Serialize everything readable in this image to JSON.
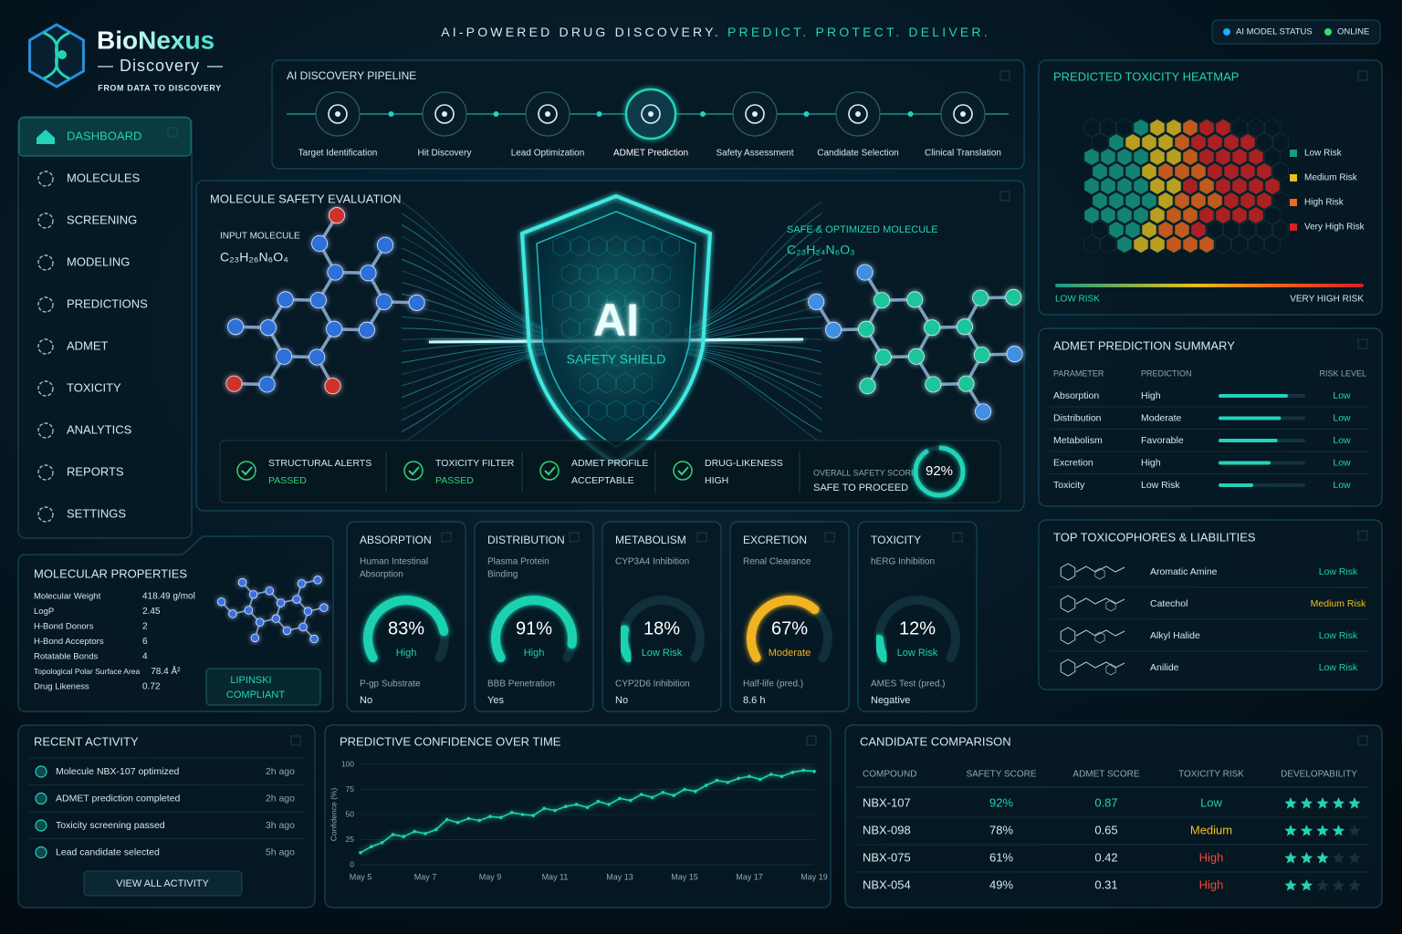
{
  "header": {
    "brand": "BioNexus",
    "brand_sub": "Discovery",
    "brand_tagline": "FROM DATA TO DISCOVERY",
    "tagline": "AI-POWERED DRUG DISCOVERY. ",
    "tagline_accent": "PREDICT. PROTECT. DELIVER.",
    "status_label": "AI MODEL STATUS",
    "status_value": "ONLINE"
  },
  "nav": {
    "items": [
      "DASHBOARD",
      "MOLECULES",
      "SCREENING",
      "MODELING",
      "PREDICTIONS",
      "ADMET",
      "TOXICITY",
      "ANALYTICS",
      "REPORTS",
      "SETTINGS"
    ],
    "active": 0
  },
  "pipeline": {
    "title": "AI DISCOVERY PIPELINE",
    "steps": [
      "Target Identification",
      "Hit Discovery",
      "Lead Optimization",
      "ADMET Prediction",
      "Safety Assessment",
      "Candidate Selection",
      "Clinical Translation"
    ],
    "active": 3
  },
  "safety": {
    "title": "MOLECULE SAFETY EVALUATION",
    "input_label": "INPUT MOLECULE",
    "input_formula": "C₂₃H₂₆N₆O₄",
    "output_label": "SAFE & OPTIMIZED MOLECULE",
    "output_formula": "C₂₃H₂₄N₆O₃",
    "shield_title": "AI",
    "shield_sub": "SAFETY SHIELD",
    "checks": [
      {
        "label": "STRUCTURAL ALERTS",
        "status": "PASSED"
      },
      {
        "label": "TOXICITY FILTER",
        "status": "PASSED"
      },
      {
        "label": "ADMET PROFILE",
        "status": "ACCEPTABLE"
      },
      {
        "label": "DRUG-LIKENESS",
        "status": "HIGH"
      }
    ],
    "overall_label": "OVERALL SAFETY SCORE",
    "overall_status": "SAFE TO PROCEED",
    "overall_score": {
      "value": 92,
      "label": "92%"
    },
    "score_lim": [
      0,
      100
    ]
  },
  "heatmap": {
    "title": "PREDICTED TOXICITY HEATMAP",
    "legend": [
      {
        "name": "Low Risk",
        "color": "#169c86"
      },
      {
        "name": "Medium Risk",
        "color": "#e6c01e"
      },
      {
        "name": "High Risk",
        "color": "#ef6a1c"
      },
      {
        "name": "Very High Risk",
        "color": "#d42222"
      }
    ],
    "scale_low": "LOW RISK",
    "scale_high": "VERY HIGH RISK"
  },
  "admet_summary": {
    "title": "ADMET PREDICTION SUMMARY",
    "columns": [
      "PARAMETER",
      "PREDICTION",
      "RISK LEVEL"
    ],
    "bar_lim": [
      0,
      100
    ],
    "rows": [
      {
        "parameter": "Absorption",
        "prediction": "High",
        "bar": 80,
        "risk": "Low"
      },
      {
        "parameter": "Distribution",
        "prediction": "Moderate",
        "bar": 72,
        "risk": "Low"
      },
      {
        "parameter": "Metabolism",
        "prediction": "Favorable",
        "bar": 68,
        "risk": "Low"
      },
      {
        "parameter": "Excretion",
        "prediction": "High",
        "bar": 60,
        "risk": "Low"
      },
      {
        "parameter": "Toxicity",
        "prediction": "Low Risk",
        "bar": 40,
        "risk": "Low"
      }
    ]
  },
  "properties": {
    "title": "MOLECULAR PROPERTIES",
    "rows": [
      [
        "Molecular Weight",
        "418.49 g/mol"
      ],
      [
        "LogP",
        "2.45"
      ],
      [
        "H-Bond Donors",
        "2"
      ],
      [
        "H-Bond Acceptors",
        "6"
      ],
      [
        "Rotatable Bonds",
        "4"
      ],
      [
        "Topological Polar Surface Area",
        "78.4 Å²"
      ],
      [
        "Drug Likeness",
        "0.72"
      ]
    ],
    "badge": [
      "LIPINSKI",
      "COMPLIANT"
    ]
  },
  "cards": {
    "gauge_lim": [
      0,
      100
    ],
    "items": [
      {
        "title": "ABSORPTION",
        "subtitle": [
          "Human Intestinal",
          "Absorption"
        ],
        "gauge": {
          "value": 83,
          "label": "83%"
        },
        "status": "High",
        "color": "#1fd1b0",
        "footer_label": "P-gp Substrate",
        "footer_value": "No"
      },
      {
        "title": "DISTRIBUTION",
        "subtitle": [
          "Plasma Protein",
          "Binding"
        ],
        "gauge": {
          "value": 91,
          "label": "91%"
        },
        "status": "High",
        "color": "#1fd1b0",
        "footer_label": "BBB Penetration",
        "footer_value": "Yes"
      },
      {
        "title": "METABOLISM",
        "subtitle": [
          "CYP3A4 Inhibition"
        ],
        "gauge": {
          "value": 18,
          "label": "18%"
        },
        "status": "Low Risk",
        "color": "#1fd1b0",
        "footer_label": "CYP2D6 Inhibition",
        "footer_value": "No"
      },
      {
        "title": "EXCRETION",
        "subtitle": [
          "Renal Clearance"
        ],
        "gauge": {
          "value": 67,
          "label": "67%"
        },
        "status": "Moderate",
        "color": "#f0b323",
        "footer_label": "Half-life (pred.)",
        "footer_value": "8.6 h"
      },
      {
        "title": "TOXICITY",
        "subtitle": [
          "hERG Inhibition"
        ],
        "gauge": {
          "value": 12,
          "label": "12%"
        },
        "status": "Low Risk",
        "color": "#1fd1b0",
        "footer_label": "AMES Test (pred.)",
        "footer_value": "Negative"
      }
    ]
  },
  "toxicophores": {
    "title": "TOP TOXICOPHORES & LIABILITIES",
    "items": [
      {
        "name": "Aromatic Amine",
        "risk": "Low Risk",
        "color": "#1fd1b0"
      },
      {
        "name": "Catechol",
        "risk": "Medium Risk",
        "color": "#f0c020"
      },
      {
        "name": "Alkyl Halide",
        "risk": "Low Risk",
        "color": "#1fd1b0"
      },
      {
        "name": "Anilide",
        "risk": "Low Risk",
        "color": "#1fd1b0"
      }
    ]
  },
  "activity": {
    "title": "RECENT ACTIVITY",
    "items": [
      {
        "text": "Molecule NBX-107 optimized",
        "time": "2h ago"
      },
      {
        "text": "ADMET prediction completed",
        "time": "2h ago"
      },
      {
        "text": "Toxicity screening passed",
        "time": "3h ago"
      },
      {
        "text": "Lead candidate selected",
        "time": "5h ago"
      }
    ],
    "button": "VIEW ALL ACTIVITY"
  },
  "chart_data": {
    "type": "line",
    "title": "PREDICTIVE CONFIDENCE OVER TIME",
    "y_label": "Confidence (%)",
    "categories": [
      "May 5",
      null,
      null,
      null,
      null,
      null,
      "May 7",
      null,
      null,
      null,
      null,
      null,
      "May 9",
      null,
      null,
      null,
      null,
      null,
      "May 11",
      null,
      null,
      null,
      null,
      null,
      "May 13",
      null,
      null,
      null,
      null,
      null,
      "May 15",
      null,
      null,
      null,
      null,
      null,
      "May 17",
      null,
      null,
      null,
      null,
      null,
      "May 19"
    ],
    "values": [
      12,
      18,
      22,
      30,
      28,
      33,
      31,
      35,
      45,
      42,
      46,
      44,
      48,
      47,
      52,
      50,
      49,
      56,
      54,
      58,
      60,
      57,
      63,
      60,
      66,
      64,
      70,
      67,
      72,
      69,
      75,
      73,
      79,
      84,
      82,
      86,
      88,
      85,
      90,
      88,
      92,
      94,
      93
    ],
    "color": "#1fd1b0",
    "ylim": [
      0,
      100
    ],
    "yticks": [
      0,
      25,
      50,
      75,
      100
    ],
    "grid": true
  },
  "comparison": {
    "title": "CANDIDATE COMPARISON",
    "columns": [
      "COMPOUND",
      "SAFETY SCORE",
      "ADMET SCORE",
      "TOXICITY RISK",
      "DEVELOPABILITY"
    ],
    "stars_max": 5,
    "rows": [
      {
        "compound": "NBX-107",
        "safety": "92%",
        "admet": "0.87",
        "risk": "Low",
        "risk_color": "#1fd1b0",
        "stars": 5
      },
      {
        "compound": "NBX-098",
        "safety": "78%",
        "admet": "0.65",
        "risk": "Medium",
        "risk_color": "#f0c020",
        "stars": 4
      },
      {
        "compound": "NBX-075",
        "safety": "61%",
        "admet": "0.42",
        "risk": "High",
        "risk_color": "#f04a3a",
        "stars": 3
      },
      {
        "compound": "NBX-054",
        "safety": "49%",
        "admet": "0.31",
        "risk": "High",
        "risk_color": "#f04a3a",
        "stars": 2
      }
    ]
  }
}
